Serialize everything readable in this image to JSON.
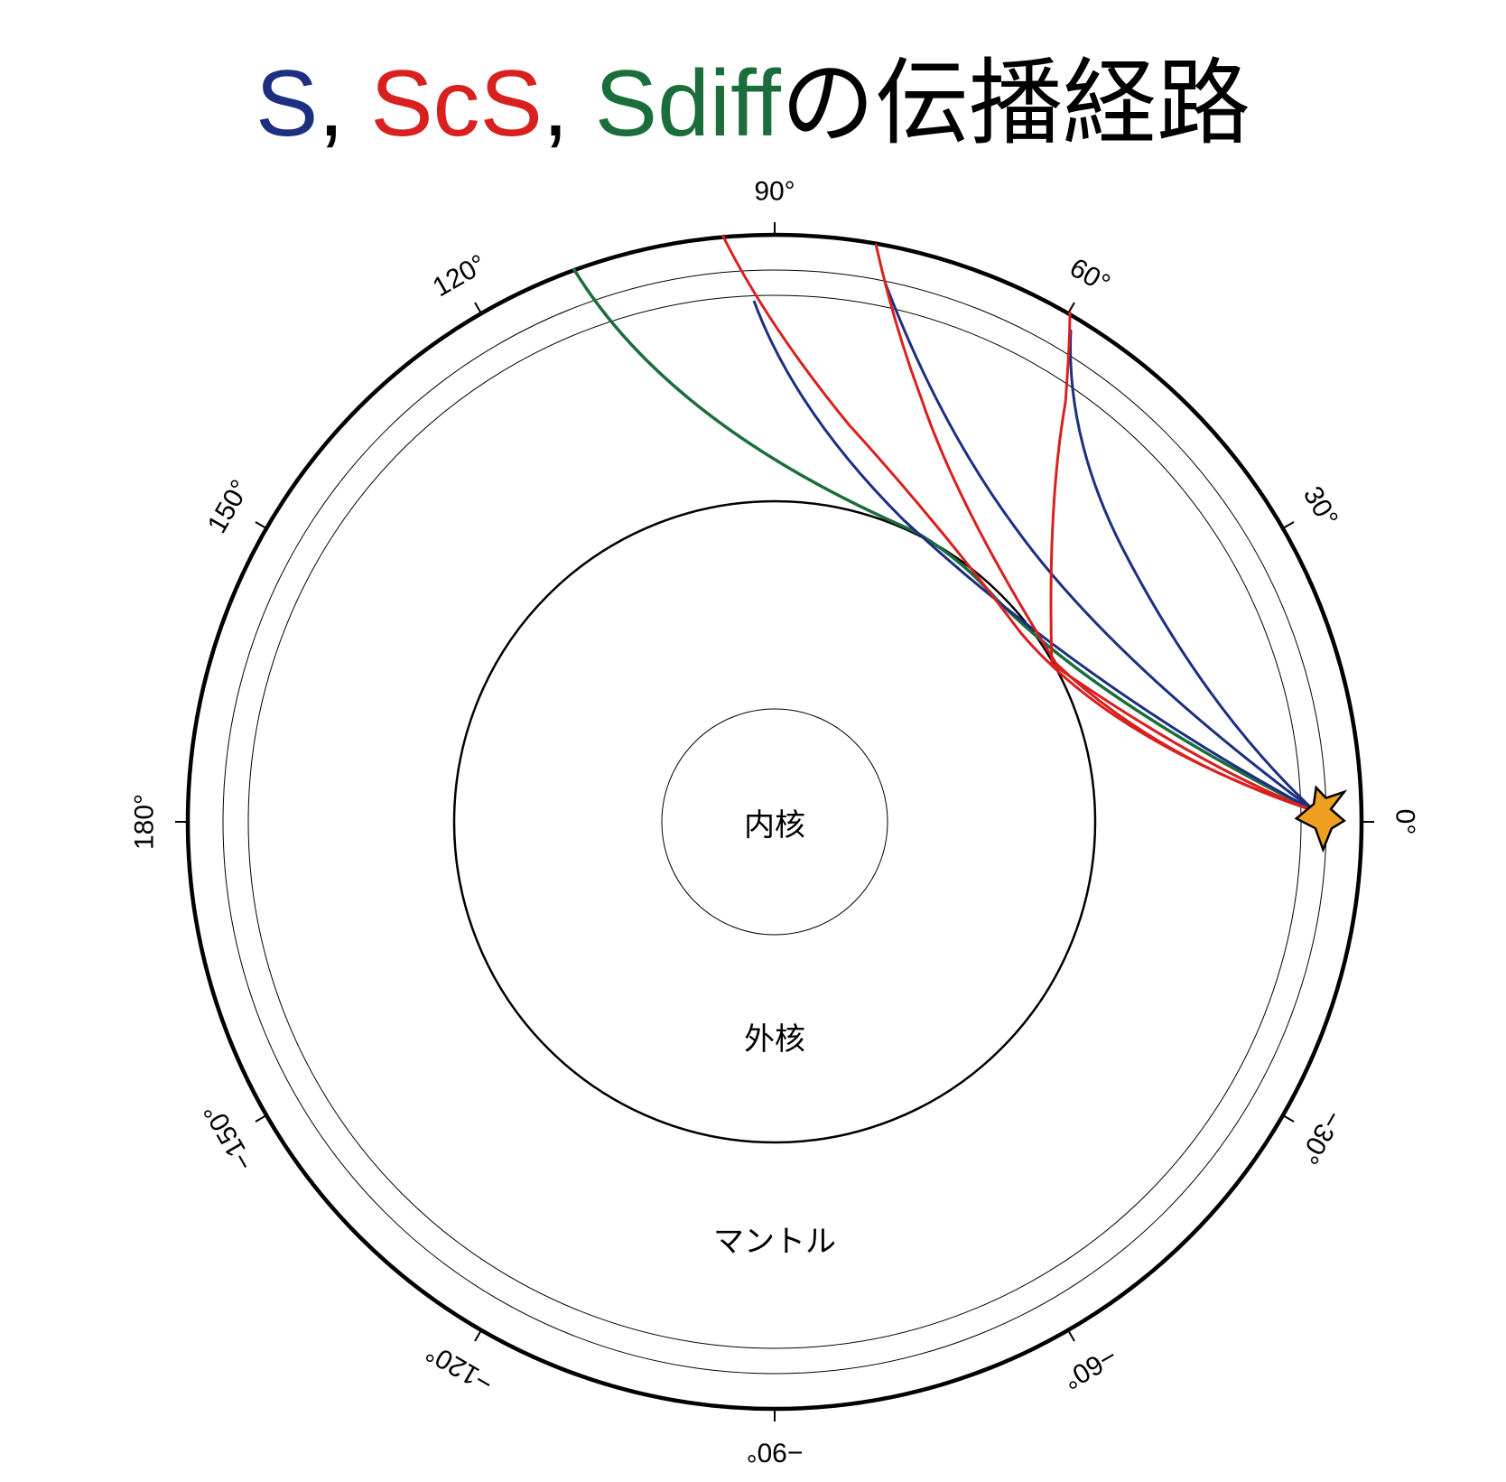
{
  "title": {
    "parts": [
      {
        "text": "S",
        "color": "#1c2f80"
      },
      {
        "text": ", ",
        "color": "#000000"
      },
      {
        "text": "ScS",
        "color": "#d8211f"
      },
      {
        "text": ", ",
        "color": "#000000"
      },
      {
        "text": "Sdiff",
        "color": "#1b6e3b"
      },
      {
        "text": "の伝播経路",
        "color": "#000000"
      }
    ]
  },
  "regions": {
    "inner_core": "内核",
    "outer_core": "外核",
    "mantle": "マントル"
  },
  "angle_ticks": [
    {
      "deg": 0,
      "label": "0°"
    },
    {
      "deg": 30,
      "label": "30°"
    },
    {
      "deg": 60,
      "label": "60°"
    },
    {
      "deg": 90,
      "label": "90°"
    },
    {
      "deg": 120,
      "label": "120°"
    },
    {
      "deg": 150,
      "label": "150°"
    },
    {
      "deg": 180,
      "label": "180°"
    },
    {
      "deg": -30,
      "label": "−30°"
    },
    {
      "deg": -60,
      "label": "−60°"
    },
    {
      "deg": -90,
      "label": "−90°"
    },
    {
      "deg": -120,
      "label": "−120°"
    },
    {
      "deg": -150,
      "label": "−150°"
    }
  ],
  "colors": {
    "S": "#1c2f80",
    "ScS": "#d8211f",
    "Sdiff": "#1b6e3b",
    "source": "#f0a020"
  },
  "source_icon": "star-icon"
}
